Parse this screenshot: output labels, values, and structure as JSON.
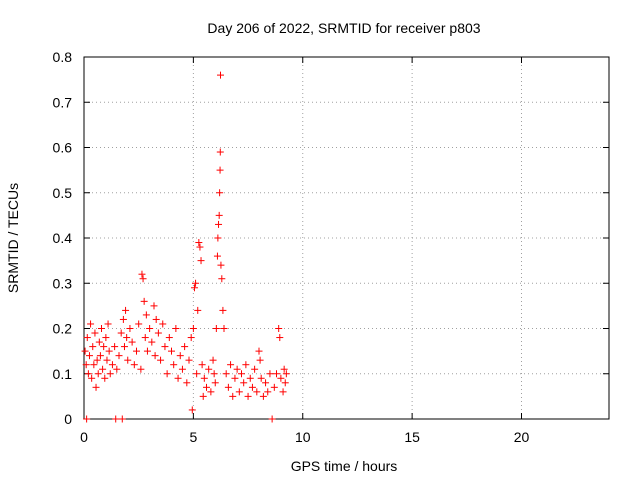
{
  "chart_data": {
    "type": "scatter",
    "title": "Day 206 of 2022, SRMTID for receiver p803",
    "xlabel": "GPS time / hours",
    "ylabel": "SRMTID / TECUs",
    "xlim": [
      0,
      24
    ],
    "ylim": [
      0,
      0.8
    ],
    "x_ticks": [
      0,
      5,
      10,
      15,
      20
    ],
    "y_ticks": [
      0,
      0.1,
      0.2,
      0.3,
      0.4,
      0.5,
      0.6,
      0.7,
      0.8
    ],
    "x_tick_labels": [
      "0",
      "5",
      "10",
      "15",
      "20"
    ],
    "y_tick_labels": [
      "0",
      "0.1",
      "0.2",
      "0.3",
      "0.4",
      "0.5",
      "0.6",
      "0.7",
      "0.8"
    ],
    "grid": true,
    "marker": "+",
    "series": [
      {
        "name": "SRMTID",
        "color": "#ff0000",
        "points": [
          [
            0.05,
            0.15
          ],
          [
            0.1,
            0.12
          ],
          [
            0.12,
            0.0
          ],
          [
            0.15,
            0.18
          ],
          [
            0.2,
            0.1
          ],
          [
            0.25,
            0.14
          ],
          [
            0.3,
            0.21
          ],
          [
            0.35,
            0.09
          ],
          [
            0.4,
            0.16
          ],
          [
            0.45,
            0.12
          ],
          [
            0.5,
            0.19
          ],
          [
            0.55,
            0.07
          ],
          [
            0.6,
            0.13
          ],
          [
            0.65,
            0.1
          ],
          [
            0.7,
            0.17
          ],
          [
            0.75,
            0.14
          ],
          [
            0.8,
            0.2
          ],
          [
            0.85,
            0.11
          ],
          [
            0.9,
            0.16
          ],
          [
            0.95,
            0.09
          ],
          [
            1.0,
            0.18
          ],
          [
            1.05,
            0.13
          ],
          [
            1.1,
            0.21
          ],
          [
            1.15,
            0.15
          ],
          [
            1.2,
            0.1
          ],
          [
            1.3,
            0.12
          ],
          [
            1.4,
            0.16
          ],
          [
            1.45,
            0.0
          ],
          [
            1.5,
            0.11
          ],
          [
            1.6,
            0.14
          ],
          [
            1.7,
            0.19
          ],
          [
            1.75,
            0.0
          ],
          [
            1.8,
            0.22
          ],
          [
            1.85,
            0.16
          ],
          [
            1.9,
            0.24
          ],
          [
            1.95,
            0.18
          ],
          [
            2.0,
            0.13
          ],
          [
            2.1,
            0.2
          ],
          [
            2.2,
            0.17
          ],
          [
            2.3,
            0.12
          ],
          [
            2.4,
            0.15
          ],
          [
            2.5,
            0.21
          ],
          [
            2.6,
            0.11
          ],
          [
            2.65,
            0.32
          ],
          [
            2.7,
            0.31
          ],
          [
            2.75,
            0.26
          ],
          [
            2.8,
            0.18
          ],
          [
            2.85,
            0.23
          ],
          [
            2.9,
            0.15
          ],
          [
            3.0,
            0.2
          ],
          [
            3.1,
            0.17
          ],
          [
            3.2,
            0.25
          ],
          [
            3.25,
            0.14
          ],
          [
            3.3,
            0.22
          ],
          [
            3.4,
            0.19
          ],
          [
            3.5,
            0.13
          ],
          [
            3.6,
            0.21
          ],
          [
            3.7,
            0.16
          ],
          [
            3.8,
            0.1
          ],
          [
            3.9,
            0.18
          ],
          [
            4.0,
            0.15
          ],
          [
            4.1,
            0.12
          ],
          [
            4.2,
            0.2
          ],
          [
            4.3,
            0.09
          ],
          [
            4.4,
            0.14
          ],
          [
            4.5,
            0.11
          ],
          [
            4.6,
            0.16
          ],
          [
            4.7,
            0.08
          ],
          [
            4.8,
            0.13
          ],
          [
            4.9,
            0.18
          ],
          [
            4.95,
            0.02
          ],
          [
            5.0,
            0.2
          ],
          [
            5.05,
            0.29
          ],
          [
            5.1,
            0.3
          ],
          [
            5.15,
            0.1
          ],
          [
            5.2,
            0.24
          ],
          [
            5.25,
            0.39
          ],
          [
            5.3,
            0.38
          ],
          [
            5.35,
            0.35
          ],
          [
            5.4,
            0.12
          ],
          [
            5.45,
            0.05
          ],
          [
            5.5,
            0.09
          ],
          [
            5.6,
            0.07
          ],
          [
            5.7,
            0.11
          ],
          [
            5.8,
            0.06
          ],
          [
            5.9,
            0.13
          ],
          [
            5.95,
            0.1
          ],
          [
            6.0,
            0.08
          ],
          [
            6.05,
            0.2
          ],
          [
            6.1,
            0.36
          ],
          [
            6.12,
            0.4
          ],
          [
            6.15,
            0.43
          ],
          [
            6.18,
            0.45
          ],
          [
            6.2,
            0.5
          ],
          [
            6.22,
            0.55
          ],
          [
            6.23,
            0.59
          ],
          [
            6.24,
            0.76
          ],
          [
            6.26,
            0.34
          ],
          [
            6.3,
            0.31
          ],
          [
            6.35,
            0.24
          ],
          [
            6.4,
            0.2
          ],
          [
            6.5,
            0.1
          ],
          [
            6.6,
            0.07
          ],
          [
            6.7,
            0.12
          ],
          [
            6.8,
            0.05
          ],
          [
            6.9,
            0.09
          ],
          [
            7.0,
            0.11
          ],
          [
            7.1,
            0.06
          ],
          [
            7.2,
            0.1
          ],
          [
            7.3,
            0.08
          ],
          [
            7.4,
            0.12
          ],
          [
            7.5,
            0.05
          ],
          [
            7.6,
            0.09
          ],
          [
            7.7,
            0.07
          ],
          [
            7.8,
            0.11
          ],
          [
            7.9,
            0.06
          ],
          [
            8.0,
            0.15
          ],
          [
            8.05,
            0.13
          ],
          [
            8.1,
            0.09
          ],
          [
            8.2,
            0.05
          ],
          [
            8.3,
            0.08
          ],
          [
            8.4,
            0.06
          ],
          [
            8.5,
            0.1
          ],
          [
            8.6,
            0.0
          ],
          [
            8.7,
            0.07
          ],
          [
            8.8,
            0.1
          ],
          [
            8.9,
            0.2
          ],
          [
            8.95,
            0.18
          ],
          [
            9.0,
            0.09
          ],
          [
            9.1,
            0.06
          ],
          [
            9.15,
            0.11
          ],
          [
            9.2,
            0.08
          ],
          [
            9.25,
            0.1
          ]
        ]
      }
    ]
  }
}
